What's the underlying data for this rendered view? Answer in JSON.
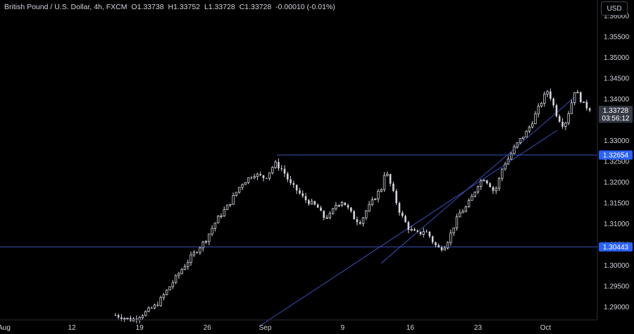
{
  "legend": {
    "title": "British Pound / U.S. Dollar, 4h, FXCM",
    "o_label": "O",
    "o_value": "1.33738",
    "h_label": "H",
    "h_value": "1.33752",
    "l_label": "L",
    "l_value": "1.33728",
    "c_label": "C",
    "c_value": "1.33728",
    "change": "-0.00010 (-0.01%)"
  },
  "currency_button": "USD",
  "colors": {
    "background": "#000000",
    "candle": "#d1d4dc",
    "line": "#3c4fb9",
    "tag_blue": "#2962ff",
    "tag_gray": "#363a45",
    "text": "#d1d4dc"
  },
  "price_tags": {
    "last_price": "1.33728",
    "countdown": "03:56:12",
    "resistance": "1.32654",
    "support": "1.30443"
  },
  "chart_data": {
    "type": "candlestick",
    "y_axis": {
      "range": [
        1.2855,
        1.3625
      ],
      "ticks": [
        "1.36000",
        "1.35500",
        "1.35000",
        "1.34500",
        "1.34000",
        "1.33500",
        "1.33000",
        "1.32500",
        "1.32000",
        "1.31500",
        "1.31000",
        "1.30500",
        "1.30000",
        "1.29500",
        "1.29000"
      ],
      "tick_values": [
        1.36,
        1.355,
        1.35,
        1.345,
        1.34,
        1.335,
        1.33,
        1.325,
        1.32,
        1.315,
        1.31,
        1.305,
        1.3,
        1.295,
        1.29
      ]
    },
    "x_axis": {
      "range": [
        "Aug 5",
        "Oct 2"
      ],
      "tick_labels": [
        "Aug",
        "12",
        "19",
        "26",
        "Sep",
        "9",
        "16",
        "23",
        "Oct"
      ],
      "tick_positions": [
        0,
        7,
        14,
        21,
        27,
        35,
        42,
        49,
        56
      ]
    },
    "horizontal_lines": [
      1.32654,
      1.30443
    ],
    "trendlines": [
      {
        "from": {
          "day": 26.5,
          "price": 1.2855
        },
        "to": {
          "day": 57.2,
          "price": 1.3325
        }
      },
      {
        "from": {
          "day": 39.0,
          "price": 1.3005
        },
        "to": {
          "day": 59.0,
          "price": 1.3405
        }
      }
    ],
    "price_path": [
      [
        11.5,
        1.288
      ],
      [
        13.2,
        1.2868
      ],
      [
        14.5,
        1.2885
      ],
      [
        15.8,
        1.2905
      ],
      [
        17.0,
        1.2945
      ],
      [
        18.2,
        1.2985
      ],
      [
        19.5,
        1.3025
      ],
      [
        20.8,
        1.306
      ],
      [
        22.0,
        1.311
      ],
      [
        23.2,
        1.3145
      ],
      [
        24.5,
        1.3195
      ],
      [
        25.8,
        1.322
      ],
      [
        27.0,
        1.321
      ],
      [
        28.0,
        1.3245
      ],
      [
        28.8,
        1.323
      ],
      [
        29.6,
        1.3195
      ],
      [
        30.3,
        1.318
      ],
      [
        31.0,
        1.316
      ],
      [
        31.7,
        1.315
      ],
      [
        32.4,
        1.314
      ],
      [
        33.0,
        1.3115
      ],
      [
        33.7,
        1.312
      ],
      [
        34.3,
        1.3145
      ],
      [
        35.0,
        1.3155
      ],
      [
        35.6,
        1.3135
      ],
      [
        36.3,
        1.311
      ],
      [
        36.9,
        1.3105
      ],
      [
        37.4,
        1.313
      ],
      [
        38.0,
        1.315
      ],
      [
        38.5,
        1.317
      ],
      [
        39.0,
        1.3185
      ],
      [
        39.4,
        1.323
      ],
      [
        39.8,
        1.3205
      ],
      [
        40.3,
        1.317
      ],
      [
        40.8,
        1.3135
      ],
      [
        41.2,
        1.3115
      ],
      [
        41.8,
        1.309
      ],
      [
        42.3,
        1.308
      ],
      [
        42.9,
        1.3075
      ],
      [
        43.5,
        1.3085
      ],
      [
        44.0,
        1.307
      ],
      [
        44.5,
        1.305
      ],
      [
        45.0,
        1.304
      ],
      [
        45.5,
        1.3045
      ],
      [
        46.0,
        1.3065
      ],
      [
        46.6,
        1.31
      ],
      [
        47.1,
        1.3125
      ],
      [
        47.8,
        1.314
      ],
      [
        48.4,
        1.3165
      ],
      [
        49.0,
        1.3195
      ],
      [
        49.6,
        1.321
      ],
      [
        50.2,
        1.3195
      ],
      [
        50.7,
        1.3175
      ],
      [
        51.1,
        1.32
      ],
      [
        51.6,
        1.324
      ],
      [
        52.1,
        1.3255
      ],
      [
        52.7,
        1.328
      ],
      [
        53.3,
        1.33
      ],
      [
        54.0,
        1.332
      ],
      [
        54.6,
        1.3345
      ],
      [
        55.2,
        1.3375
      ],
      [
        55.7,
        1.34
      ],
      [
        56.2,
        1.342
      ],
      [
        56.6,
        1.34
      ],
      [
        57.0,
        1.337
      ],
      [
        57.3,
        1.3355
      ],
      [
        57.6,
        1.3345
      ],
      [
        57.9,
        1.3335
      ],
      [
        58.2,
        1.3355
      ],
      [
        58.6,
        1.3385
      ],
      [
        59.0,
        1.342
      ],
      [
        59.4,
        1.341
      ],
      [
        59.8,
        1.339
      ],
      [
        60.3,
        1.338
      ],
      [
        60.7,
        1.3373
      ]
    ]
  }
}
